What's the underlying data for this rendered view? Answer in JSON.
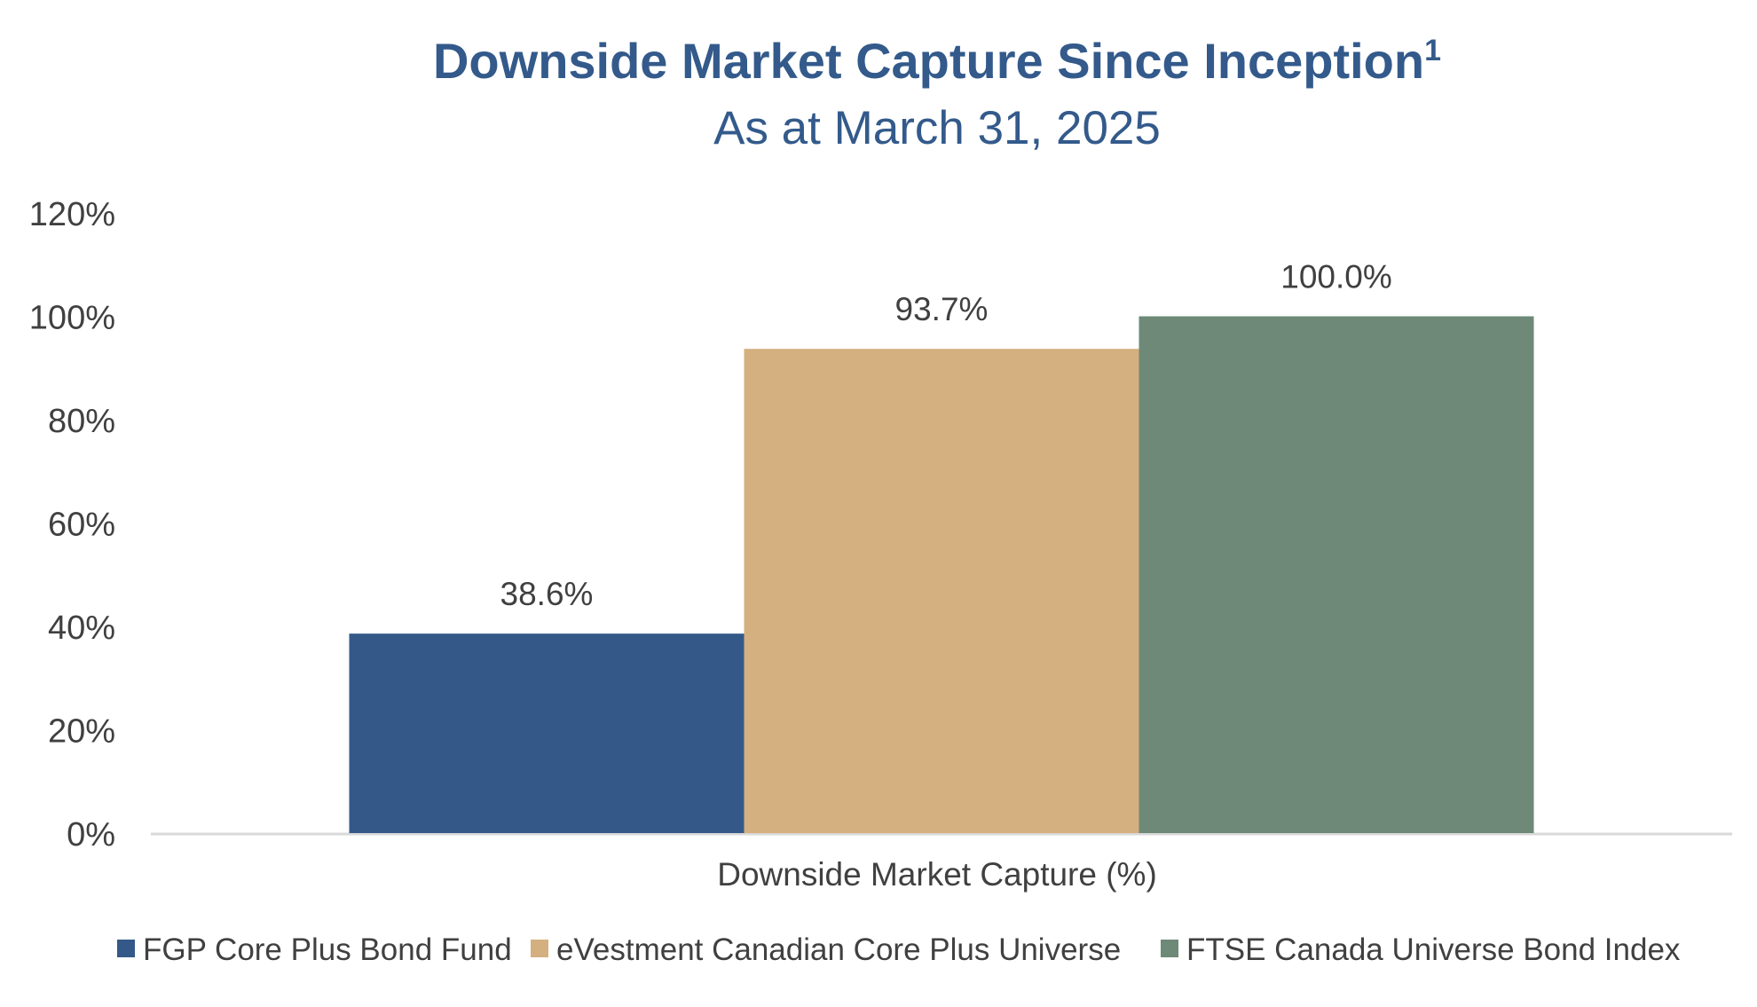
{
  "chart_data": {
    "type": "bar",
    "title": "Downside Market Capture Since Inception",
    "title_superscript": "1",
    "subtitle": "As at March 31, 2025",
    "xlabel": "Downside Market Capture (%)",
    "ylabel": "",
    "categories": [
      "Downside Market Capture (%)"
    ],
    "ylim": [
      0,
      120
    ],
    "yticks": [
      0,
      20,
      40,
      60,
      80,
      100,
      120
    ],
    "ytick_labels": [
      "0%",
      "20%",
      "40%",
      "60%",
      "80%",
      "100%",
      "120%"
    ],
    "grid": false,
    "legend_position": "bottom",
    "series": [
      {
        "name": "FGP Core Plus Bond Fund",
        "values": [
          38.6
        ],
        "label": "38.6%",
        "color": "#345989"
      },
      {
        "name": "eVestment Canadian Core Plus Universe",
        "values": [
          93.7
        ],
        "label": "93.7%",
        "color": "#D4AF7F"
      },
      {
        "name": "FTSE Canada Universe Bond Index",
        "values": [
          100.0
        ],
        "label": "100.0%",
        "color": "#6E8977"
      }
    ],
    "colors": {
      "title": "#335A8B",
      "text": "#404040",
      "axis": "#D9D9D9"
    }
  }
}
